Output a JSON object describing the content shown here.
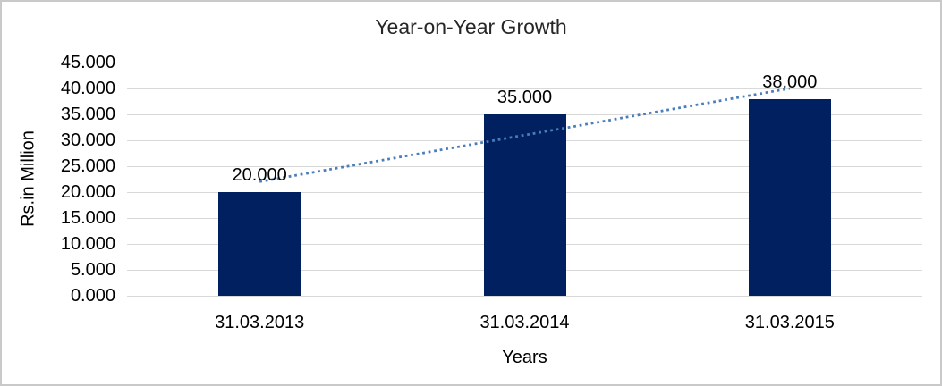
{
  "window": {
    "background": "#ffffff",
    "border_color": "#c9c9c9"
  },
  "chart_data": {
    "type": "bar",
    "title": "Year-on-Year Growth",
    "xlabel": "Years",
    "ylabel": "Rs.in Million",
    "categories": [
      "31.03.2013",
      "31.03.2014",
      "31.03.2015"
    ],
    "values": [
      20000,
      35000,
      38000
    ],
    "data_labels": [
      "20.000",
      "35.000",
      "38.000"
    ],
    "ylim": [
      0,
      45000
    ],
    "ytick_values": [
      0,
      5000,
      10000,
      15000,
      20000,
      25000,
      30000,
      35000,
      40000,
      45000
    ],
    "ytick_labels": [
      "0.000",
      "5.000",
      "10.000",
      "15.000",
      "20.000",
      "25.000",
      "30.000",
      "35.000",
      "40.000",
      "45.000"
    ],
    "grid": true,
    "legend": "none",
    "colors": {
      "bar": "#002060",
      "gridline": "#d9d9d9",
      "trendline": "#4a7ebb",
      "title_text": "#262626",
      "axis_text": "#000000"
    },
    "trendline": {
      "type": "linear",
      "style": "dotted",
      "start_value": 22000,
      "end_value": 40000
    }
  }
}
